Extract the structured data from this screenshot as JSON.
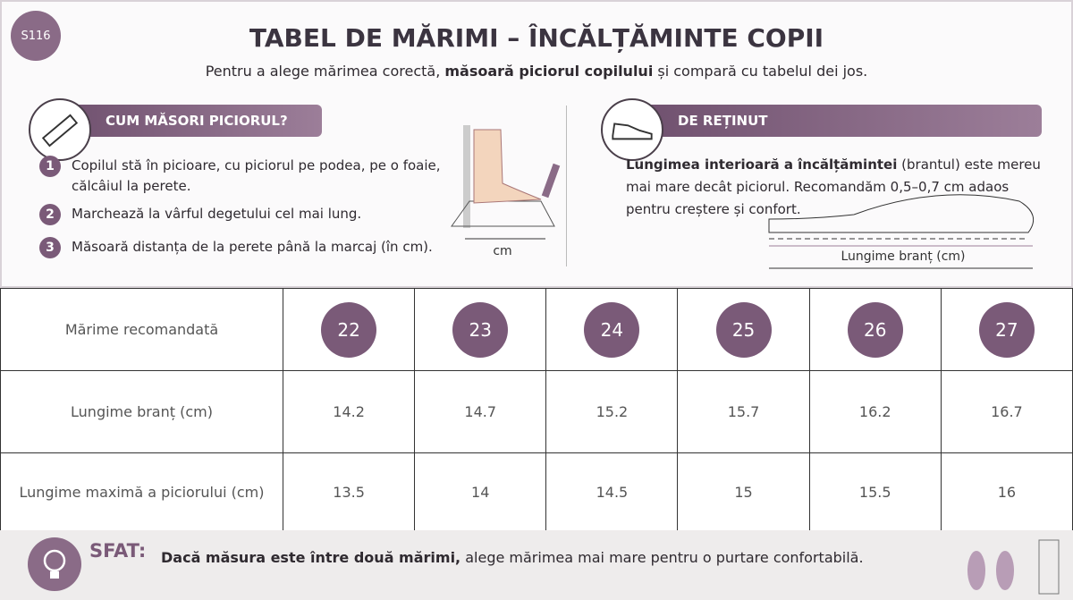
{
  "badge": "S116",
  "header": {
    "title": "TABEL DE MĂRIMI – ÎNCĂLȚĂMINTE COPII",
    "subtitle_before": "Pentru a alege mărimea corectă,",
    "subtitle_bold": "măsoară piciorul copilului",
    "subtitle_after": "și compară cu tabelul dei jos."
  },
  "measure": {
    "title": "CUM MĂSORI PICIORUL?",
    "steps": [
      {
        "number": "1",
        "text": "Copilul stă în picioare, cu piciorul pe podea, pe o foaie, călcâiul la perete."
      },
      {
        "number": "2",
        "text": "Marchează la vârful degetului cel mai lung."
      },
      {
        "number": "3",
        "text": "Măsoară distanța de la perete până la marcaj (în cm)."
      }
    ],
    "diagram_label": "cm"
  },
  "remember": {
    "title": "DE REȚINUT",
    "text_bold": "Lungimea interioară a încălțămintei",
    "text": "(brantul) este mereu mai mare decât piciorul. Recomandăm 0,5–0,7 cm adaos pentru creștere și confort.",
    "diagram_label": "Lungime branț (cm)"
  },
  "table": {
    "rows": [
      [
        "Mărime recomandată",
        22,
        23,
        24,
        25,
        26,
        27
      ],
      [
        "Lungime branț (cm)",
        14.2,
        14.7,
        15.2,
        15.7,
        16.2,
        16.7
      ],
      [
        "Lungime maximă a piciorului (cm)",
        13.5,
        14,
        14.5,
        15,
        15.5,
        16
      ]
    ]
  },
  "tip": {
    "label": "SFAT:",
    "text_bold": "Dacă măsura este între două mărimi,",
    "text": "alege mărimea mai mare pentru o purtare confortabilă."
  }
}
